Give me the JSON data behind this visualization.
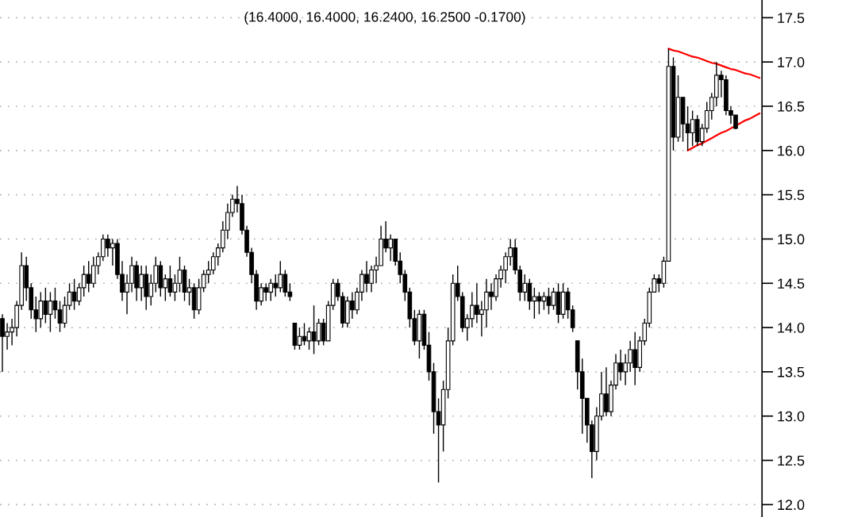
{
  "chart_data": {
    "type": "candlestick",
    "subtitle": "(16.4000, 16.4000, 16.2400, 16.2500 -0.1700)",
    "categories": [
      null,
      null,
      null,
      null,
      null,
      null,
      null,
      null,
      null,
      null,
      null,
      null,
      null,
      null,
      null,
      null,
      null,
      null,
      null,
      null,
      null,
      null,
      null,
      null,
      null,
      null,
      null,
      null,
      null,
      null,
      null,
      null,
      null,
      null,
      null,
      null,
      null,
      null,
      null,
      null,
      null,
      null,
      null,
      null,
      null,
      null,
      null,
      null,
      null,
      null,
      null,
      null,
      null,
      null,
      null,
      null,
      null,
      null,
      null,
      null,
      null,
      null,
      null,
      null,
      null,
      null,
      null,
      null,
      null,
      null,
      null,
      null,
      null,
      null,
      null,
      null,
      null,
      null,
      null,
      null,
      null,
      null,
      null,
      null,
      null,
      null,
      null,
      null,
      null,
      null,
      null,
      null,
      null,
      null,
      null,
      null,
      null,
      null,
      null,
      null,
      null,
      null,
      null,
      null,
      null,
      null,
      null,
      null,
      null,
      null,
      null,
      null,
      null,
      null,
      null,
      null,
      null,
      null,
      null,
      null,
      null,
      null,
      null,
      null,
      null,
      null,
      null,
      null,
      null,
      null,
      null,
      null,
      null,
      null,
      null,
      null,
      null,
      null,
      null,
      null,
      null,
      null,
      null,
      null,
      null,
      null,
      null,
      null,
      null,
      null,
      null,
      null,
      null,
      null,
      null,
      null,
      null,
      null,
      null
    ],
    "color": "#000000",
    "ohlc": [
      [
        14.1,
        14.15,
        13.5,
        13.9
      ],
      [
        13.9,
        14.05,
        13.75,
        13.95
      ],
      [
        13.95,
        14.1,
        13.8,
        14.0
      ],
      [
        14.0,
        14.3,
        13.9,
        14.25
      ],
      [
        14.25,
        14.85,
        14.2,
        14.7
      ],
      [
        14.7,
        14.8,
        14.3,
        14.45
      ],
      [
        14.45,
        14.5,
        14.1,
        14.2
      ],
      [
        14.2,
        14.35,
        13.95,
        14.1
      ],
      [
        14.1,
        14.4,
        14.0,
        14.3
      ],
      [
        14.3,
        14.45,
        14.05,
        14.15
      ],
      [
        14.15,
        14.4,
        13.95,
        14.3
      ],
      [
        14.3,
        14.45,
        14.1,
        14.2
      ],
      [
        14.2,
        14.3,
        13.95,
        14.05
      ],
      [
        14.05,
        14.35,
        14.0,
        14.25
      ],
      [
        14.25,
        14.5,
        14.2,
        14.4
      ],
      [
        14.4,
        14.55,
        14.2,
        14.3
      ],
      [
        14.3,
        14.5,
        14.25,
        14.45
      ],
      [
        14.45,
        14.7,
        14.35,
        14.6
      ],
      [
        14.6,
        14.75,
        14.4,
        14.5
      ],
      [
        14.5,
        14.8,
        14.45,
        14.7
      ],
      [
        14.7,
        14.85,
        14.6,
        14.8
      ],
      [
        14.8,
        15.05,
        14.75,
        15.0
      ],
      [
        15.0,
        15.05,
        14.8,
        14.9
      ],
      [
        14.9,
        15.0,
        14.7,
        14.95
      ],
      [
        14.95,
        15.0,
        14.55,
        14.6
      ],
      [
        14.6,
        14.75,
        14.3,
        14.4
      ],
      [
        14.4,
        14.6,
        14.15,
        14.5
      ],
      [
        14.5,
        14.8,
        14.4,
        14.7
      ],
      [
        14.7,
        14.75,
        14.3,
        14.45
      ],
      [
        14.45,
        14.7,
        14.3,
        14.6
      ],
      [
        14.6,
        14.7,
        14.2,
        14.35
      ],
      [
        14.35,
        14.6,
        14.25,
        14.5
      ],
      [
        14.5,
        14.8,
        14.4,
        14.7
      ],
      [
        14.7,
        14.75,
        14.35,
        14.45
      ],
      [
        14.45,
        14.6,
        14.3,
        14.55
      ],
      [
        14.55,
        14.7,
        14.35,
        14.4
      ],
      [
        14.4,
        14.6,
        14.3,
        14.5
      ],
      [
        14.5,
        14.8,
        14.4,
        14.65
      ],
      [
        14.65,
        14.7,
        14.3,
        14.4
      ],
      [
        14.4,
        14.55,
        14.25,
        14.45
      ],
      [
        14.45,
        14.5,
        14.1,
        14.2
      ],
      [
        14.2,
        14.55,
        14.15,
        14.45
      ],
      [
        14.45,
        14.65,
        14.4,
        14.6
      ],
      [
        14.6,
        14.75,
        14.5,
        14.65
      ],
      [
        14.65,
        14.85,
        14.6,
        14.8
      ],
      [
        14.8,
        14.95,
        14.7,
        14.9
      ],
      [
        14.9,
        15.2,
        14.85,
        15.1
      ],
      [
        15.1,
        15.4,
        15.0,
        15.3
      ],
      [
        15.3,
        15.5,
        15.25,
        15.45
      ],
      [
        15.45,
        15.6,
        15.3,
        15.4
      ],
      [
        15.4,
        15.5,
        15.05,
        15.1
      ],
      [
        15.1,
        15.15,
        14.8,
        14.85
      ],
      [
        14.85,
        14.9,
        14.5,
        14.6
      ],
      [
        14.6,
        14.65,
        14.2,
        14.3
      ],
      [
        14.3,
        14.5,
        14.25,
        14.45
      ],
      [
        14.45,
        14.5,
        14.3,
        14.4
      ],
      [
        14.4,
        14.55,
        14.3,
        14.5
      ],
      [
        14.5,
        14.6,
        14.35,
        14.45
      ],
      [
        14.45,
        14.75,
        14.4,
        14.6
      ],
      [
        14.6,
        14.65,
        14.35,
        14.4
      ],
      [
        14.4,
        14.5,
        14.3,
        14.35
      ],
      [
        14.05,
        14.05,
        13.75,
        13.8
      ],
      [
        13.8,
        14.0,
        13.75,
        13.9
      ],
      [
        13.9,
        14.05,
        13.8,
        13.85
      ],
      [
        13.85,
        14.0,
        13.75,
        13.95
      ],
      [
        13.95,
        14.25,
        13.7,
        13.85
      ],
      [
        13.85,
        14.1,
        13.8,
        14.05
      ],
      [
        14.05,
        14.1,
        13.8,
        13.85
      ],
      [
        13.85,
        14.3,
        13.85,
        14.25
      ],
      [
        14.25,
        14.55,
        14.2,
        14.5
      ],
      [
        14.5,
        14.55,
        14.3,
        14.35
      ],
      [
        14.35,
        14.4,
        14.0,
        14.05
      ],
      [
        14.05,
        14.35,
        14.0,
        14.3
      ],
      [
        14.3,
        14.4,
        14.1,
        14.2
      ],
      [
        14.2,
        14.45,
        14.15,
        14.4
      ],
      [
        14.4,
        14.65,
        14.3,
        14.6
      ],
      [
        14.6,
        14.75,
        14.4,
        14.5
      ],
      [
        14.5,
        14.7,
        14.4,
        14.65
      ],
      [
        14.65,
        14.8,
        14.5,
        14.7
      ],
      [
        14.7,
        15.15,
        14.7,
        15.0
      ],
      [
        15.0,
        15.2,
        14.85,
        14.9
      ],
      [
        14.9,
        15.05,
        14.75,
        15.0
      ],
      [
        15.0,
        15.0,
        14.7,
        14.75
      ],
      [
        14.75,
        14.85,
        14.5,
        14.6
      ],
      [
        14.6,
        14.65,
        14.3,
        14.4
      ],
      [
        14.4,
        14.45,
        14.0,
        14.1
      ],
      [
        14.1,
        14.2,
        13.8,
        13.85
      ],
      [
        13.85,
        14.2,
        13.65,
        14.15
      ],
      [
        14.15,
        14.2,
        13.75,
        13.8
      ],
      [
        13.8,
        13.95,
        13.4,
        13.5
      ],
      [
        13.5,
        13.6,
        12.8,
        13.05
      ],
      [
        13.05,
        13.2,
        12.25,
        12.9
      ],
      [
        12.9,
        13.4,
        12.6,
        13.3
      ],
      [
        13.3,
        14.0,
        13.2,
        13.85
      ],
      [
        13.85,
        14.6,
        13.8,
        14.5
      ],
      [
        14.5,
        14.7,
        14.3,
        14.35
      ],
      [
        14.35,
        14.4,
        13.95,
        14.0
      ],
      [
        14.0,
        14.15,
        13.85,
        14.1
      ],
      [
        14.1,
        14.4,
        14.0,
        14.25
      ],
      [
        14.25,
        14.5,
        14.05,
        14.15
      ],
      [
        14.15,
        14.3,
        13.9,
        14.2
      ],
      [
        14.2,
        14.55,
        14.0,
        14.4
      ],
      [
        14.4,
        14.5,
        14.2,
        14.35
      ],
      [
        14.35,
        14.6,
        14.3,
        14.55
      ],
      [
        14.55,
        14.7,
        14.45,
        14.65
      ],
      [
        14.65,
        14.85,
        14.5,
        14.8
      ],
      [
        14.8,
        15.0,
        14.7,
        14.9
      ],
      [
        14.9,
        15.0,
        14.6,
        14.65
      ],
      [
        14.65,
        14.7,
        14.3,
        14.4
      ],
      [
        14.4,
        14.6,
        14.3,
        14.5
      ],
      [
        14.5,
        14.55,
        14.2,
        14.3
      ],
      [
        14.3,
        14.45,
        14.1,
        14.35
      ],
      [
        14.35,
        14.4,
        14.15,
        14.3
      ],
      [
        14.3,
        14.4,
        14.2,
        14.35
      ],
      [
        14.35,
        14.45,
        14.15,
        14.25
      ],
      [
        14.25,
        14.45,
        14.2,
        14.4
      ],
      [
        14.4,
        14.5,
        14.05,
        14.15
      ],
      [
        14.15,
        14.5,
        14.1,
        14.4
      ],
      [
        14.4,
        14.45,
        14.1,
        14.2
      ],
      [
        14.2,
        14.25,
        13.95,
        14.0
      ],
      [
        13.85,
        13.85,
        13.3,
        13.5
      ],
      [
        13.5,
        13.65,
        12.8,
        13.2
      ],
      [
        13.2,
        13.2,
        12.7,
        12.9
      ],
      [
        12.9,
        12.95,
        12.3,
        12.6
      ],
      [
        12.6,
        13.1,
        12.5,
        13.0
      ],
      [
        13.0,
        13.5,
        12.95,
        13.25
      ],
      [
        13.25,
        13.55,
        13.0,
        13.05
      ],
      [
        13.05,
        13.4,
        13.0,
        13.35
      ],
      [
        13.35,
        13.7,
        13.3,
        13.6
      ],
      [
        13.6,
        13.75,
        13.4,
        13.5
      ],
      [
        13.5,
        13.7,
        13.35,
        13.6
      ],
      [
        13.6,
        13.85,
        13.5,
        13.75
      ],
      [
        13.75,
        13.95,
        13.35,
        13.55
      ],
      [
        13.55,
        13.9,
        13.5,
        13.85
      ],
      [
        13.85,
        14.1,
        13.8,
        14.05
      ],
      [
        14.05,
        14.45,
        14.0,
        14.4
      ],
      [
        14.4,
        14.6,
        14.4,
        14.55
      ],
      [
        14.55,
        14.6,
        14.4,
        14.5
      ],
      [
        14.5,
        14.8,
        14.45,
        14.75
      ],
      [
        14.75,
        17.15,
        14.75,
        16.95
      ],
      [
        16.95,
        17.05,
        16.0,
        16.15
      ],
      [
        16.15,
        16.85,
        16.1,
        16.6
      ],
      [
        16.6,
        16.6,
        16.1,
        16.3
      ],
      [
        16.3,
        16.5,
        16.0,
        16.2
      ],
      [
        16.2,
        16.45,
        16.05,
        16.35
      ],
      [
        16.35,
        16.4,
        16.05,
        16.1
      ],
      [
        16.1,
        16.3,
        16.05,
        16.25
      ],
      [
        16.25,
        16.55,
        16.2,
        16.45
      ],
      [
        16.45,
        16.65,
        16.35,
        16.6
      ],
      [
        16.6,
        17.0,
        16.5,
        16.85
      ],
      [
        16.85,
        16.9,
        16.6,
        16.8
      ],
      [
        16.8,
        16.85,
        16.4,
        16.45
      ],
      [
        16.45,
        16.5,
        16.3,
        16.4
      ],
      [
        16.4,
        16.4,
        16.24,
        16.25
      ],
      null,
      null,
      null,
      null,
      null
    ],
    "series": [
      {
        "type": "line",
        "color": "#ff0000",
        "values": [
          null,
          null,
          null,
          null,
          null,
          null,
          null,
          null,
          null,
          null,
          null,
          null,
          null,
          null,
          null,
          null,
          null,
          null,
          null,
          null,
          null,
          null,
          null,
          null,
          null,
          null,
          null,
          null,
          null,
          null,
          null,
          null,
          null,
          null,
          null,
          null,
          null,
          null,
          null,
          null,
          null,
          null,
          null,
          null,
          null,
          null,
          null,
          null,
          null,
          null,
          null,
          null,
          null,
          null,
          null,
          null,
          null,
          null,
          null,
          null,
          null,
          null,
          null,
          null,
          null,
          null,
          null,
          null,
          null,
          null,
          null,
          null,
          null,
          null,
          null,
          null,
          null,
          null,
          null,
          null,
          null,
          null,
          null,
          null,
          null,
          null,
          null,
          null,
          null,
          null,
          null,
          null,
          null,
          null,
          null,
          null,
          null,
          null,
          null,
          null,
          null,
          null,
          null,
          null,
          null,
          null,
          null,
          null,
          null,
          null,
          null,
          null,
          null,
          null,
          null,
          null,
          null,
          null,
          null,
          null,
          null,
          null,
          null,
          null,
          null,
          null,
          null,
          null,
          null,
          null,
          null,
          null,
          null,
          null,
          null,
          null,
          null,
          null,
          null,
          17.15,
          17.13,
          17.12,
          17.1,
          17.08,
          17.06,
          17.05,
          17.03,
          17.01,
          16.99,
          16.98,
          16.96,
          16.94,
          16.92,
          16.91,
          16.89,
          16.87,
          16.86,
          16.84,
          16.82
        ]
      },
      {
        "type": "line",
        "color": "#ff0000",
        "values": [
          null,
          null,
          null,
          null,
          null,
          null,
          null,
          null,
          null,
          null,
          null,
          null,
          null,
          null,
          null,
          null,
          null,
          null,
          null,
          null,
          null,
          null,
          null,
          null,
          null,
          null,
          null,
          null,
          null,
          null,
          null,
          null,
          null,
          null,
          null,
          null,
          null,
          null,
          null,
          null,
          null,
          null,
          null,
          null,
          null,
          null,
          null,
          null,
          null,
          null,
          null,
          null,
          null,
          null,
          null,
          null,
          null,
          null,
          null,
          null,
          null,
          null,
          null,
          null,
          null,
          null,
          null,
          null,
          null,
          null,
          null,
          null,
          null,
          null,
          null,
          null,
          null,
          null,
          null,
          null,
          null,
          null,
          null,
          null,
          null,
          null,
          null,
          null,
          null,
          null,
          null,
          null,
          null,
          null,
          null,
          null,
          null,
          null,
          null,
          null,
          null,
          null,
          null,
          null,
          null,
          null,
          null,
          null,
          null,
          null,
          null,
          null,
          null,
          null,
          null,
          null,
          null,
          null,
          null,
          null,
          null,
          null,
          null,
          null,
          null,
          null,
          null,
          null,
          null,
          null,
          null,
          null,
          null,
          null,
          null,
          null,
          null,
          null,
          null,
          null,
          null,
          null,
          null,
          16.0,
          16.03,
          16.06,
          16.08,
          16.11,
          16.14,
          16.17,
          16.2,
          16.22,
          16.25,
          16.28,
          16.31,
          16.34,
          16.36,
          16.39,
          16.42
        ]
      }
    ],
    "ylim": [
      11.86,
      17.7
    ],
    "yticks": [
      {
        "value": 12.0,
        "label": "12.0"
      },
      {
        "value": 12.5,
        "label": "12.5"
      },
      {
        "value": 13.0,
        "label": "13.0"
      },
      {
        "value": 13.5,
        "label": "13.5"
      },
      {
        "value": 14.0,
        "label": "14.0"
      },
      {
        "value": 14.5,
        "label": "14.5"
      },
      {
        "value": 15.0,
        "label": "15.0"
      },
      {
        "value": 15.5,
        "label": "15.5"
      },
      {
        "value": 16.0,
        "label": "16.0"
      },
      {
        "value": 16.5,
        "label": "16.5"
      },
      {
        "value": 17.0,
        "label": "17.0"
      },
      {
        "value": 17.5,
        "label": "17.5"
      }
    ],
    "grid": "y",
    "tick_labels": "y"
  }
}
